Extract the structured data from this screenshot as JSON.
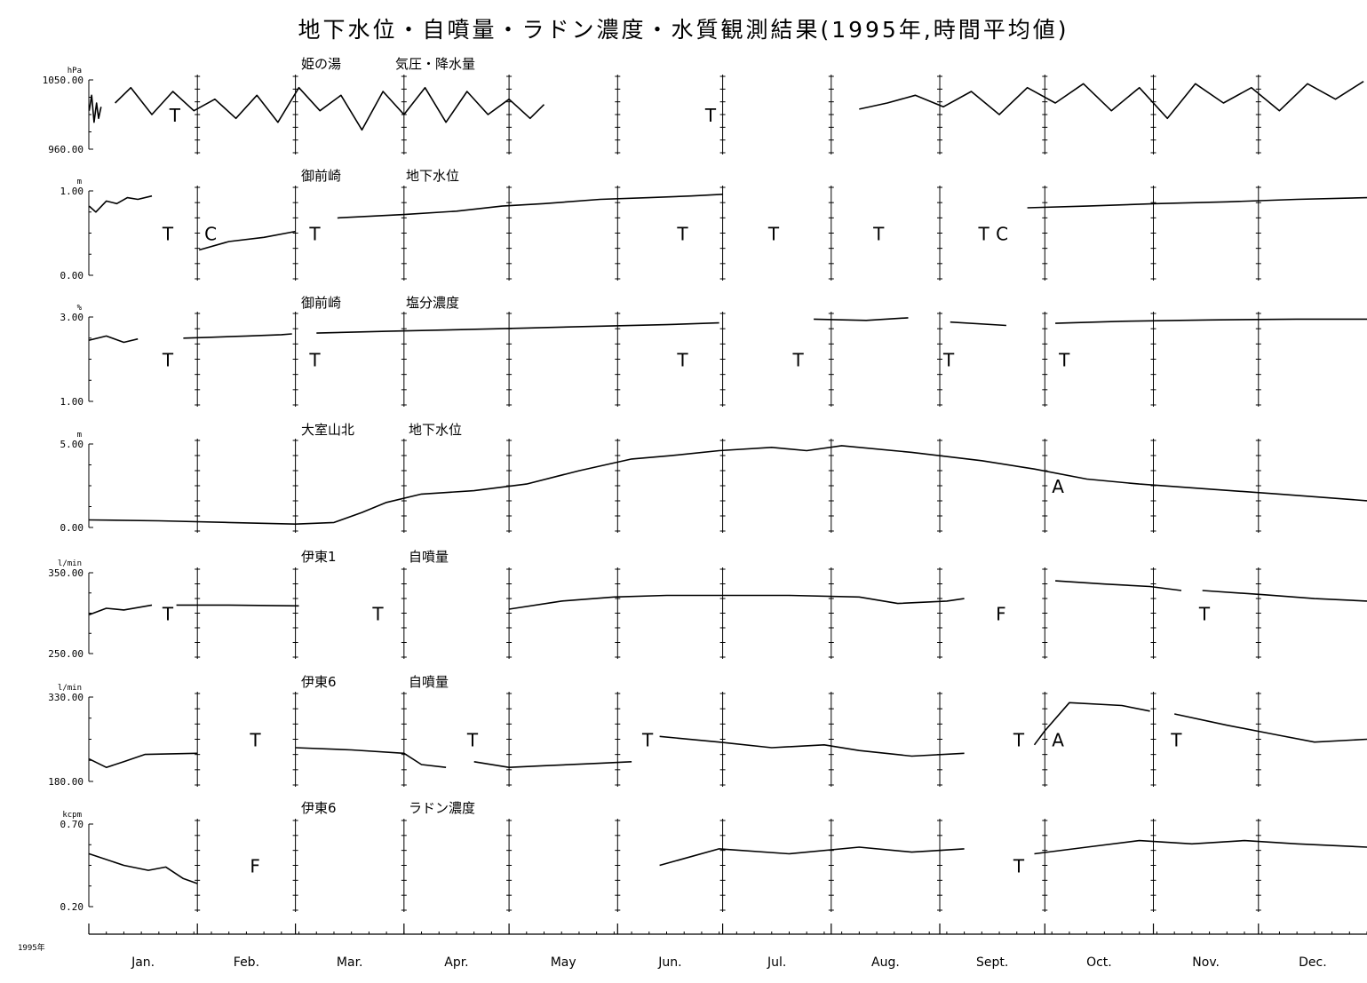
{
  "title": "地下水位・自噴量・ラドン濃度・水質観測結果(1995年,時間平均値)",
  "year_label": "1995年",
  "chart_data": {
    "type": "line",
    "months": [
      "Jan.",
      "Feb.",
      "Mar.",
      "Apr.",
      "May",
      "Jun.",
      "Jul.",
      "Aug.",
      "Sept.",
      "Oct.",
      "Nov.",
      "Dec."
    ],
    "panels": [
      {
        "id": "pressure",
        "station": "姫の湯",
        "variable": "気圧・降水量",
        "unit": "hPa",
        "ylim": [
          960.0,
          1050.0
        ],
        "tick_labels": [
          "1050.00",
          "960.00"
        ],
        "segments": [
          {
            "x": [
              0.1,
              0.8,
              1.5,
              2.2,
              2.8,
              3.5
            ],
            "y": [
              1010,
              1030,
              995,
              1020,
              1000,
              1015
            ]
          },
          {
            "x": [
              7.5,
              12.0,
              18.0,
              24.0,
              30.0,
              36.0,
              42.0,
              48.0,
              54.0,
              60.0,
              66.0,
              72.0,
              78.0,
              84.0,
              90.0,
              96.0,
              102.0,
              108.0,
              114.0,
              120.0,
              126.0,
              130.0
            ],
            "y": [
              1020,
              1040,
              1005,
              1035,
              1010,
              1025,
              1000,
              1030,
              995,
              1040,
              1010,
              1030,
              985,
              1035,
              1005,
              1040,
              995,
              1035,
              1005,
              1025,
              1000,
              1018
            ]
          },
          {
            "x": [
              220.0,
              228,
              236,
              244,
              252,
              260,
              268,
              276,
              284,
              292,
              300,
              308,
              316,
              324,
              332,
              340,
              348,
              356,
              364
            ],
            "y": [
              1012,
              1020,
              1030,
              1015,
              1035,
              1005,
              1040,
              1020,
              1045,
              1010,
              1040,
              1000,
              1045,
              1020,
              1040,
              1010,
              1045,
              1025,
              1048
            ]
          }
        ],
        "marks": [
          {
            "text": "T",
            "x": 22
          },
          {
            "text": "T",
            "x": 175
          }
        ]
      },
      {
        "id": "omaezaki-level",
        "station": "御前崎",
        "variable": "地下水位",
        "unit": "m",
        "ylim": [
          0.0,
          1.0
        ],
        "tick_labels": [
          "1.00",
          "0.00"
        ],
        "segments": [
          {
            "x": [
              0.1,
              2,
              5,
              8,
              11,
              14,
              18
            ],
            "y": [
              0.82,
              0.75,
              0.88,
              0.85,
              0.92,
              0.9,
              0.94
            ]
          },
          {
            "x": [
              31.5,
              40,
              50,
              59
            ],
            "y": [
              0.3,
              0.4,
              0.45,
              0.52
            ]
          },
          {
            "x": [
              71.0,
              90,
              105,
              118,
              130,
              146,
              160,
              172,
              181
            ],
            "y": [
              0.68,
              0.72,
              0.76,
              0.82,
              0.85,
              0.9,
              0.92,
              0.94,
              0.96
            ]
          },
          {
            "x": [
              268,
              285,
              305,
              325,
              345,
              365
            ],
            "y": [
              0.8,
              0.82,
              0.85,
              0.87,
              0.9,
              0.92
            ]
          }
        ],
        "marks": [
          {
            "text": "T",
            "x": 20
          },
          {
            "text": "C",
            "x": 32
          },
          {
            "text": "T",
            "x": 62
          },
          {
            "text": "T",
            "x": 167
          },
          {
            "text": "T",
            "x": 193
          },
          {
            "text": "T",
            "x": 223
          },
          {
            "text": "T",
            "x": 253
          },
          {
            "text": "C",
            "x": 258
          }
        ]
      },
      {
        "id": "omaezaki-salinity",
        "station": "御前崎",
        "variable": "塩分濃度",
        "unit": "%",
        "ylim": [
          1.0,
          3.0
        ],
        "tick_labels": [
          "3.00",
          "1.00"
        ],
        "segments": [
          {
            "x": [
              0.1,
              5,
              10,
              14
            ],
            "y": [
              2.45,
              2.55,
              2.4,
              2.48
            ]
          },
          {
            "x": [
              27,
              35,
              45,
              55,
              58
            ],
            "y": [
              2.5,
              2.52,
              2.55,
              2.58,
              2.6
            ]
          },
          {
            "x": [
              65,
              85,
              105,
              125,
              145,
              165,
              180
            ],
            "y": [
              2.62,
              2.66,
              2.7,
              2.74,
              2.78,
              2.82,
              2.86
            ]
          },
          {
            "x": [
              207,
              222,
              234
            ],
            "y": [
              2.95,
              2.92,
              2.98
            ]
          },
          {
            "x": [
              246,
              262
            ],
            "y": [
              2.88,
              2.8
            ]
          },
          {
            "x": [
              276,
              295,
              320,
              345,
              365
            ],
            "y": [
              2.85,
              2.9,
              2.93,
              2.95,
              2.95
            ]
          }
        ],
        "marks": [
          {
            "text": "T",
            "x": 20
          },
          {
            "text": "T",
            "x": 62
          },
          {
            "text": "T",
            "x": 167
          },
          {
            "text": "T",
            "x": 200
          },
          {
            "text": "T",
            "x": 243
          },
          {
            "text": "T",
            "x": 276
          }
        ]
      },
      {
        "id": "omuroyama-level",
        "station": "大室山北",
        "variable": "地下水位",
        "unit": "m",
        "ylim": [
          0.0,
          5.0
        ],
        "tick_labels": [
          "5.00",
          "0.00"
        ],
        "segments": [
          {
            "x": [
              0.1,
              20,
              40,
              59,
              70,
              78,
              85,
              95,
              110,
              125,
              140,
              155,
              166,
              180,
              195,
              205,
              215,
              235,
              255,
              270,
              285,
              300,
              320,
              340,
              365
            ],
            "y": [
              0.45,
              0.4,
              0.3,
              0.2,
              0.3,
              0.9,
              1.5,
              2.0,
              2.2,
              2.6,
              3.4,
              4.1,
              4.3,
              4.6,
              4.8,
              4.6,
              4.9,
              4.5,
              4.0,
              3.5,
              2.9,
              2.6,
              2.3,
              2.0,
              1.6
            ]
          }
        ],
        "marks": [
          {
            "text": "A",
            "x": 274
          }
        ]
      },
      {
        "id": "ito1-flow",
        "station": "伊東1",
        "variable": "自噴量",
        "unit": "l/min",
        "ylim": [
          250.0,
          350.0
        ],
        "tick_labels": [
          "350.00",
          "250.00"
        ],
        "segments": [
          {
            "x": [
              0.1,
              5,
              10,
              18
            ],
            "y": [
              298,
              306,
              304,
              310
            ]
          },
          {
            "x": [
              25,
              40,
              60
            ],
            "y": [
              310,
              310,
              309
            ]
          },
          {
            "x": [
              120,
              135,
              150,
              165,
              180,
              200,
              220,
              231,
              245,
              250
            ],
            "y": [
              305,
              315,
              320,
              322,
              322,
              322,
              320,
              312,
              315,
              318
            ]
          },
          {
            "x": [
              276,
              290,
              303,
              312
            ],
            "y": [
              340,
              336,
              333,
              328
            ]
          },
          {
            "x": [
              318,
              335,
              350,
              365
            ],
            "y": [
              328,
              323,
              318,
              315
            ]
          }
        ],
        "marks": [
          {
            "text": "T",
            "x": 20
          },
          {
            "text": "T",
            "x": 80
          },
          {
            "text": "F",
            "x": 258
          },
          {
            "text": "T",
            "x": 316
          }
        ]
      },
      {
        "id": "ito6-flow",
        "station": "伊東6",
        "variable": "自噴量",
        "unit": "l/min",
        "ylim": [
          180.0,
          330.0
        ],
        "tick_labels": [
          "330.00",
          "180.00"
        ],
        "segments": [
          {
            "x": [
              0.1,
              5,
              10,
              16,
              31
            ],
            "y": [
              220,
              205,
              215,
              228,
              230
            ]
          },
          {
            "x": [
              59,
              75,
              90,
              95,
              102
            ],
            "y": [
              240,
              236,
              230,
              210,
              205
            ]
          },
          {
            "x": [
              110,
              120,
              130,
              145,
              155
            ],
            "y": [
              215,
              205,
              208,
              212,
              215
            ]
          },
          {
            "x": [
              163,
              180,
              195,
              210,
              220,
              235,
              250
            ],
            "y": [
              260,
              250,
              240,
              245,
              235,
              225,
              230
            ]
          },
          {
            "x": [
              270,
              273,
              280,
              295,
              303
            ],
            "y": [
              245,
              270,
              320,
              315,
              305
            ]
          },
          {
            "x": [
              310,
              325,
              340,
              350,
              365
            ],
            "y": [
              300,
              280,
              262,
              250,
              255
            ]
          }
        ],
        "marks": [
          {
            "text": "T",
            "x": 45
          },
          {
            "text": "T",
            "x": 107
          },
          {
            "text": "T",
            "x": 157
          },
          {
            "text": "T",
            "x": 263
          },
          {
            "text": "A",
            "x": 274
          },
          {
            "text": "T",
            "x": 308
          }
        ]
      },
      {
        "id": "ito6-radon",
        "station": "伊東6",
        "variable": "ラドン濃度",
        "unit": "kcpm",
        "ylim": [
          0.2,
          0.7
        ],
        "tick_labels": [
          "0.70",
          "0.20"
        ],
        "segments": [
          {
            "x": [
              0.1,
              10,
              17,
              22,
              27,
              31
            ],
            "y": [
              0.52,
              0.45,
              0.42,
              0.44,
              0.37,
              0.34
            ]
          },
          {
            "x": [
              163,
              180,
              200,
              220,
              235,
              250
            ],
            "y": [
              0.45,
              0.55,
              0.52,
              0.56,
              0.53,
              0.55
            ]
          },
          {
            "x": [
              270,
              285,
              300,
              315,
              330,
              345,
              365
            ],
            "y": [
              0.52,
              0.56,
              0.6,
              0.58,
              0.6,
              0.58,
              0.56
            ]
          }
        ],
        "marks": [
          {
            "text": "F",
            "x": 45
          },
          {
            "text": "T",
            "x": 263
          }
        ]
      }
    ]
  }
}
